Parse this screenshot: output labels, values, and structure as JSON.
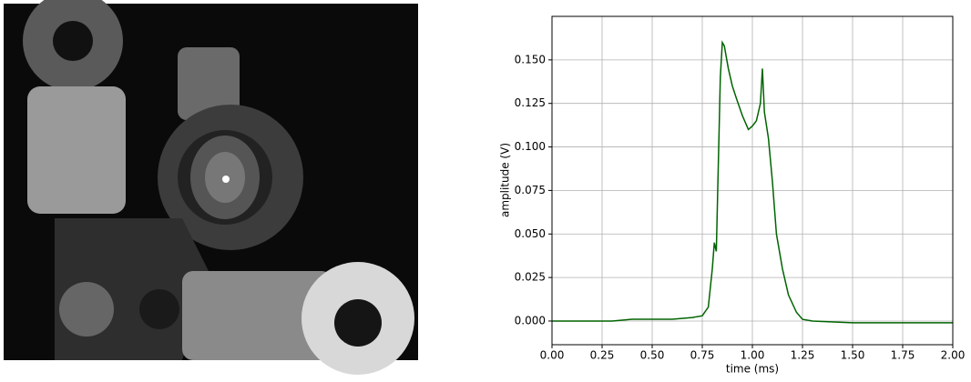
{
  "chart_data": {
    "type": "line",
    "xlabel": "time (ms)",
    "ylabel": "amplitude (V)",
    "x": [
      0,
      0.1,
      0.2,
      0.3,
      0.4,
      0.5,
      0.6,
      0.7,
      0.75,
      0.78,
      0.8,
      0.81,
      0.82,
      0.83,
      0.84,
      0.85,
      0.86,
      0.88,
      0.9,
      0.92,
      0.95,
      0.98,
      1.0,
      1.02,
      1.04,
      1.05,
      1.06,
      1.08,
      1.1,
      1.12,
      1.15,
      1.18,
      1.22,
      1.25,
      1.3,
      1.5,
      1.75,
      2.0
    ],
    "series": [
      {
        "name": "amplitude",
        "color": "#006400",
        "values": [
          0.0,
          0.0,
          0.0,
          0.0,
          0.001,
          0.001,
          0.001,
          0.002,
          0.003,
          0.008,
          0.03,
          0.045,
          0.04,
          0.09,
          0.14,
          0.16,
          0.158,
          0.145,
          0.135,
          0.128,
          0.118,
          0.11,
          0.112,
          0.115,
          0.125,
          0.145,
          0.12,
          0.105,
          0.08,
          0.05,
          0.03,
          0.015,
          0.005,
          0.001,
          0.0,
          -0.001,
          -0.001,
          -0.001
        ]
      }
    ],
    "xlim": [
      0,
      2.0
    ],
    "xticks": [
      {
        "value": 0,
        "label": "0.00"
      },
      {
        "value": 0.25,
        "label": "0.25"
      },
      {
        "value": 0.5,
        "label": "0.50"
      },
      {
        "value": 0.75,
        "label": "0.75"
      },
      {
        "value": 1.0,
        "label": "1.00"
      },
      {
        "value": 1.25,
        "label": "1.25"
      },
      {
        "value": 1.5,
        "label": "1.50"
      },
      {
        "value": 1.75,
        "label": "1.75"
      },
      {
        "value": 2.0,
        "label": "2.00"
      }
    ],
    "ylim": [
      -0.0136,
      0.175
    ],
    "yticks": [
      {
        "value": 0,
        "label": "0.000"
      },
      {
        "value": 0.025,
        "label": "0.025"
      },
      {
        "value": 0.05,
        "label": "0.050"
      },
      {
        "value": 0.075,
        "label": "0.075"
      },
      {
        "value": 0.1,
        "label": "0.100"
      },
      {
        "value": 0.125,
        "label": "0.125"
      },
      {
        "value": 0.15,
        "label": "0.150"
      }
    ],
    "grid": true
  }
}
